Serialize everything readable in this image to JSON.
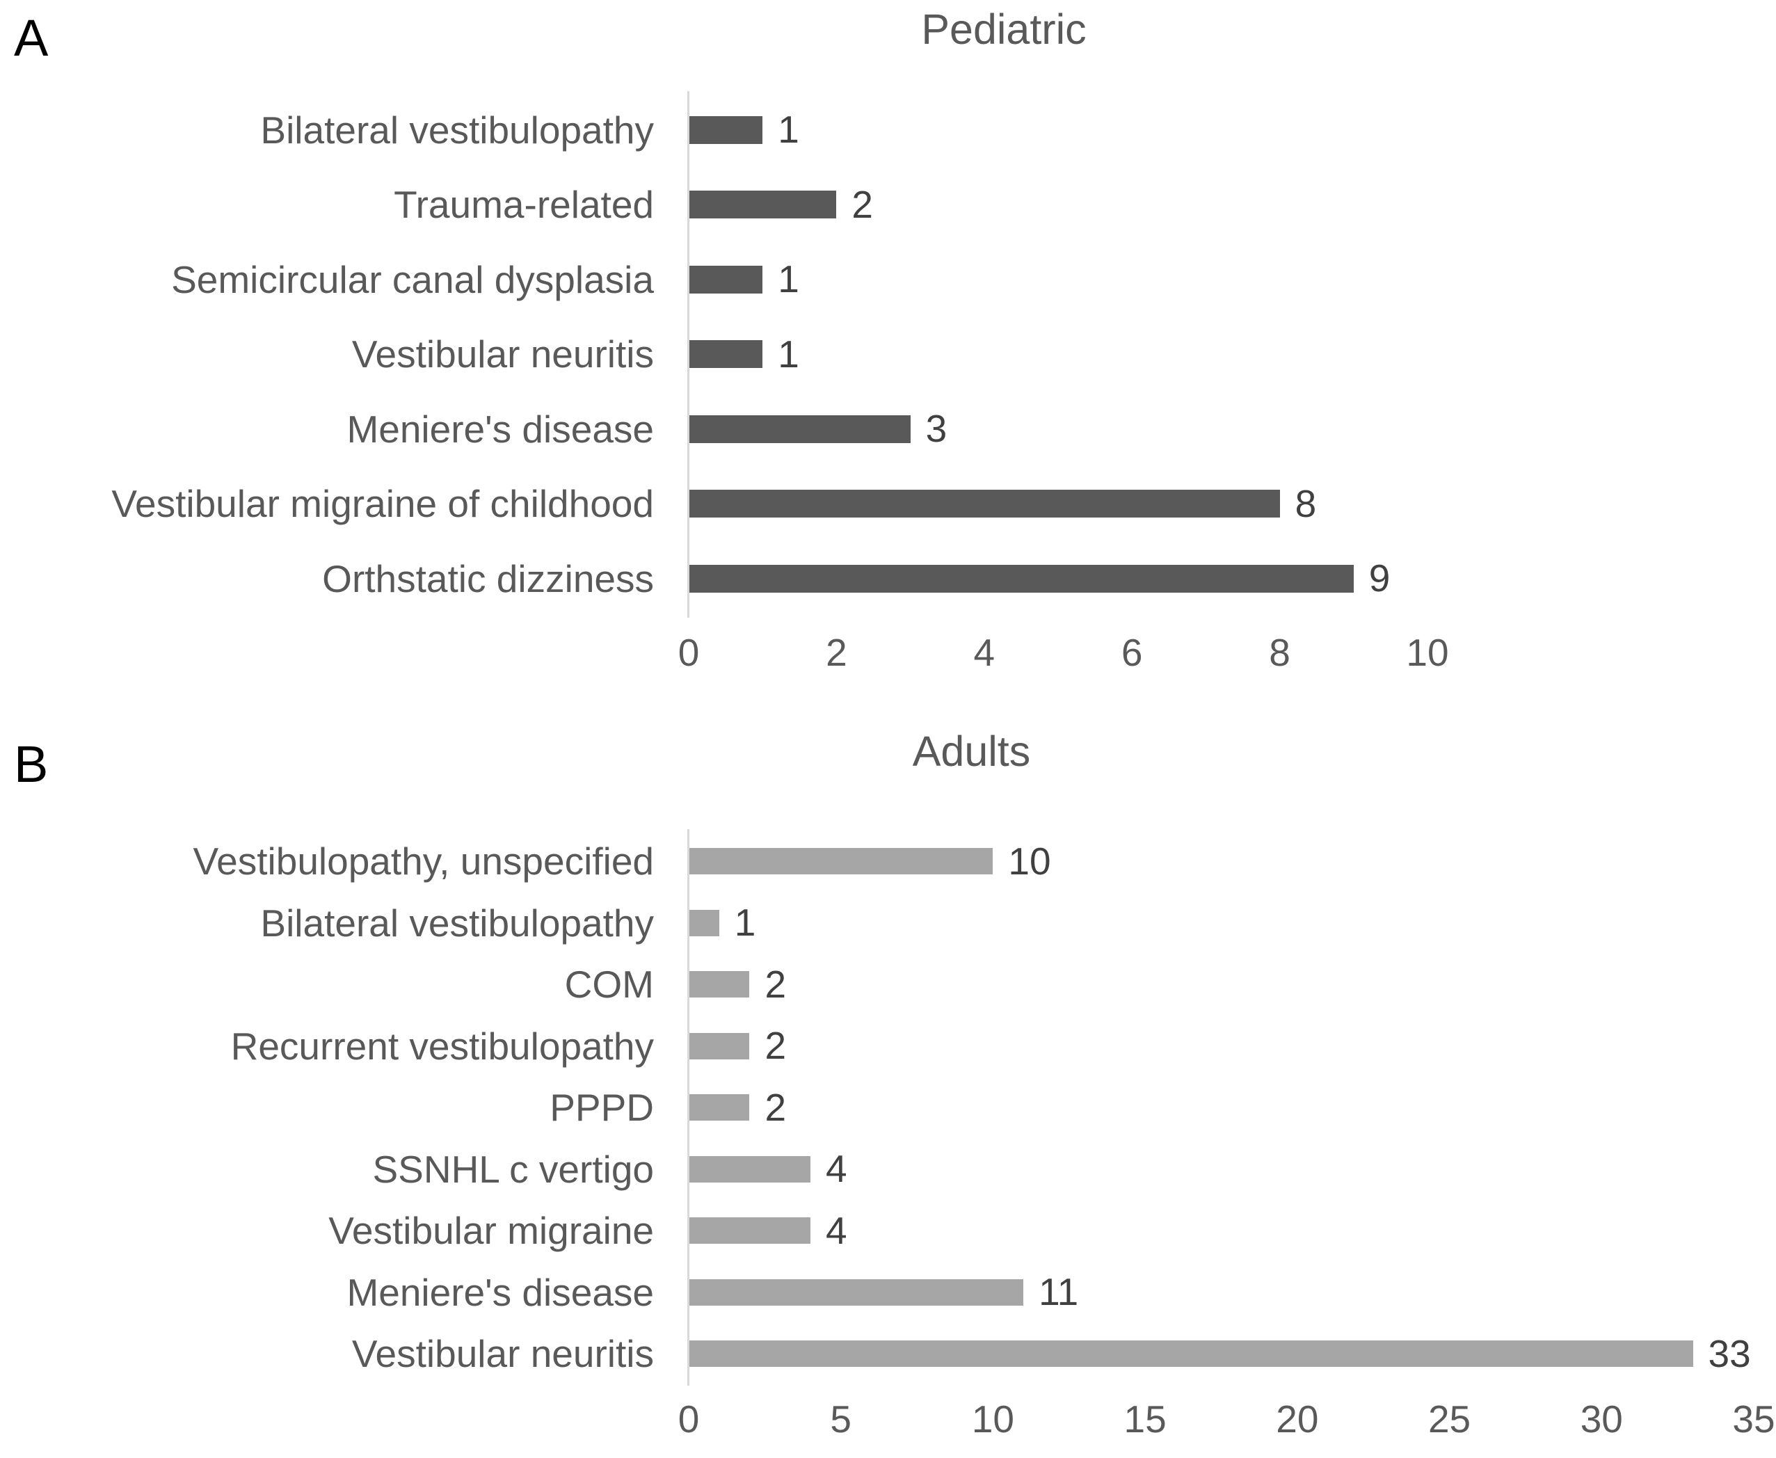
{
  "figure": {
    "background_color": "#ffffff",
    "colors": {
      "pediatric_bar": "#595959",
      "adults_bar": "#a6a6a6",
      "category_text": "#595959",
      "value_text": "#404040",
      "tick_text": "#595959",
      "title_text": "#595959",
      "panel_letter_text": "#000000",
      "axis_line": "#d9d9d9"
    }
  },
  "chart_data": [
    {
      "type": "bar",
      "orientation": "horizontal",
      "panel_label": "A",
      "title": "Pediatric",
      "categories": [
        "Bilateral vestibulopathy",
        "Trauma-related",
        "Semicircular canal dysplasia",
        "Vestibular neuritis",
        "Meniere's disease",
        "Vestibular migraine of childhood",
        "Orthstatic dizziness"
      ],
      "values": [
        1,
        2,
        1,
        1,
        3,
        8,
        9
      ],
      "value_labels": [
        "1",
        "2",
        "1",
        "1",
        "3",
        "8",
        "9"
      ],
      "x_ticks": [
        0,
        2,
        4,
        6,
        8,
        10
      ],
      "xlim": [
        0,
        10
      ],
      "xlabel": "",
      "ylabel": "",
      "bar_color": "#595959",
      "grid": false,
      "legend": false,
      "value_labels_shown": true
    },
    {
      "type": "bar",
      "orientation": "horizontal",
      "panel_label": "B",
      "title": "Adults",
      "categories": [
        "Vestibulopathy, unspecified",
        "Bilateral vestibulopathy",
        "COM",
        "Recurrent vestibulopathy",
        "PPPD",
        "SSNHL c vertigo",
        "Vestibular migraine",
        "Meniere's disease",
        "Vestibular neuritis"
      ],
      "values": [
        10,
        1,
        2,
        2,
        2,
        4,
        4,
        11,
        33
      ],
      "value_labels": [
        "10",
        "1",
        "2",
        "2",
        "2",
        "4",
        "4",
        "11",
        "33"
      ],
      "x_ticks": [
        0,
        5,
        10,
        15,
        20,
        25,
        30,
        35
      ],
      "xlim": [
        0,
        35
      ],
      "xlabel": "",
      "ylabel": "",
      "bar_color": "#a6a6a6",
      "grid": false,
      "legend": false,
      "value_labels_shown": true
    }
  ]
}
